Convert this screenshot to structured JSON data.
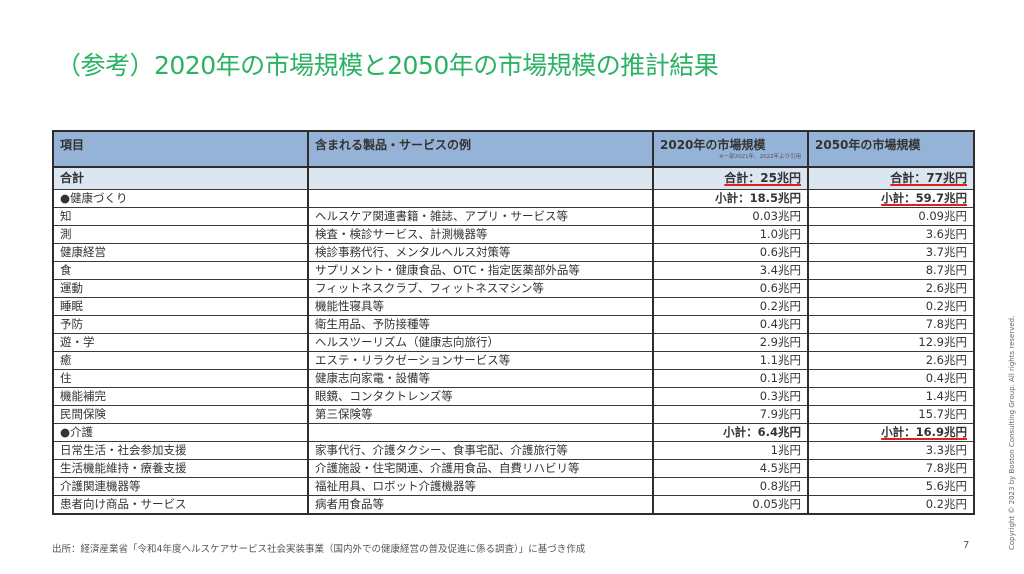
{
  "title": "（参考）2020年の市場規模と2050年の市場規模の推計結果",
  "table": {
    "headers": [
      "項目",
      "含まれる製品・サービスの例",
      "2020年の市場規模",
      "2050年の市場規模"
    ],
    "header_note": "※一部2021年、2022年より引用",
    "total": {
      "label": "合計",
      "v2020": "合計：25兆円",
      "v2050": "合計：77兆円"
    },
    "sections": [
      {
        "label": "●健康づくり",
        "v2020": "小計：18.5兆円",
        "v2050": "小計：59.7兆円",
        "rows": [
          {
            "item": "知",
            "examples": "ヘルスケア関連書籍・雑誌、アプリ・サービス等",
            "v2020": "0.03兆円",
            "v2050": "0.09兆円"
          },
          {
            "item": "測",
            "examples": "検査・検診サービス、計測機器等",
            "v2020": "1.0兆円",
            "v2050": "3.6兆円"
          },
          {
            "item": "健康経営",
            "examples": "検診事務代行、メンタルヘルス対策等",
            "v2020": "0.6兆円",
            "v2050": "3.7兆円"
          },
          {
            "item": "食",
            "examples": "サプリメント・健康食品、OTC・指定医薬部外品等",
            "v2020": "3.4兆円",
            "v2050": "8.7兆円"
          },
          {
            "item": "運動",
            "examples": "フィットネスクラブ、フィットネスマシン等",
            "v2020": "0.6兆円",
            "v2050": "2.6兆円"
          },
          {
            "item": "睡眠",
            "examples": "機能性寝具等",
            "v2020": "0.2兆円",
            "v2050": "0.2兆円"
          },
          {
            "item": "予防",
            "examples": "衛生用品、予防接種等",
            "v2020": "0.4兆円",
            "v2050": "7.8兆円"
          },
          {
            "item": "遊・学",
            "examples": "ヘルスツーリズム（健康志向旅行）",
            "v2020": "2.9兆円",
            "v2050": "12.9兆円"
          },
          {
            "item": "癒",
            "examples": "エステ・リラクゼーションサービス等",
            "v2020": "1.1兆円",
            "v2050": "2.6兆円"
          },
          {
            "item": "住",
            "examples": "健康志向家電・設備等",
            "v2020": "0.1兆円",
            "v2050": "0.4兆円"
          },
          {
            "item": "機能補完",
            "examples": "眼鏡、コンタクトレンズ等",
            "v2020": "0.3兆円",
            "v2050": "1.4兆円"
          },
          {
            "item": "民間保険",
            "examples": "第三保険等",
            "v2020": "7.9兆円",
            "v2050": "15.7兆円"
          }
        ]
      },
      {
        "label": "●介護",
        "v2020": "小計：6.4兆円",
        "v2050": "小計：16.9兆円",
        "rows": [
          {
            "item": "日常生活・社会参加支援",
            "examples": "家事代行、介護タクシー、食事宅配、介護旅行等",
            "v2020": "1兆円",
            "v2050": "3.3兆円"
          },
          {
            "item": "生活機能維持・療養支援",
            "examples": "介護施設・住宅関連、介護用食品、自費リハビリ等",
            "v2020": "4.5兆円",
            "v2050": "7.8兆円"
          },
          {
            "item": "介護関連機器等",
            "examples": "福祉用具、ロボット介護機器等",
            "v2020": "0.8兆円",
            "v2050": "5.6兆円"
          },
          {
            "item": "患者向け商品・サービス",
            "examples": "病者用食品等",
            "v2020": "0.05兆円",
            "v2050": "0.2兆円"
          }
        ]
      }
    ]
  },
  "footer": {
    "source": "出所：経済産業省「令和4年度ヘルスケアサービス社会実装事業（国内外での健康経営の普及促進に係る調査）」に基づき作成",
    "page": "7",
    "copyright": "Copyright © 2023 by Boston Consulting Group. All rights reserved."
  },
  "colors": {
    "title": "#29b363",
    "header_bg": "#95b3d7",
    "total_bg": "#dce6f1",
    "underline": "#e02020"
  }
}
